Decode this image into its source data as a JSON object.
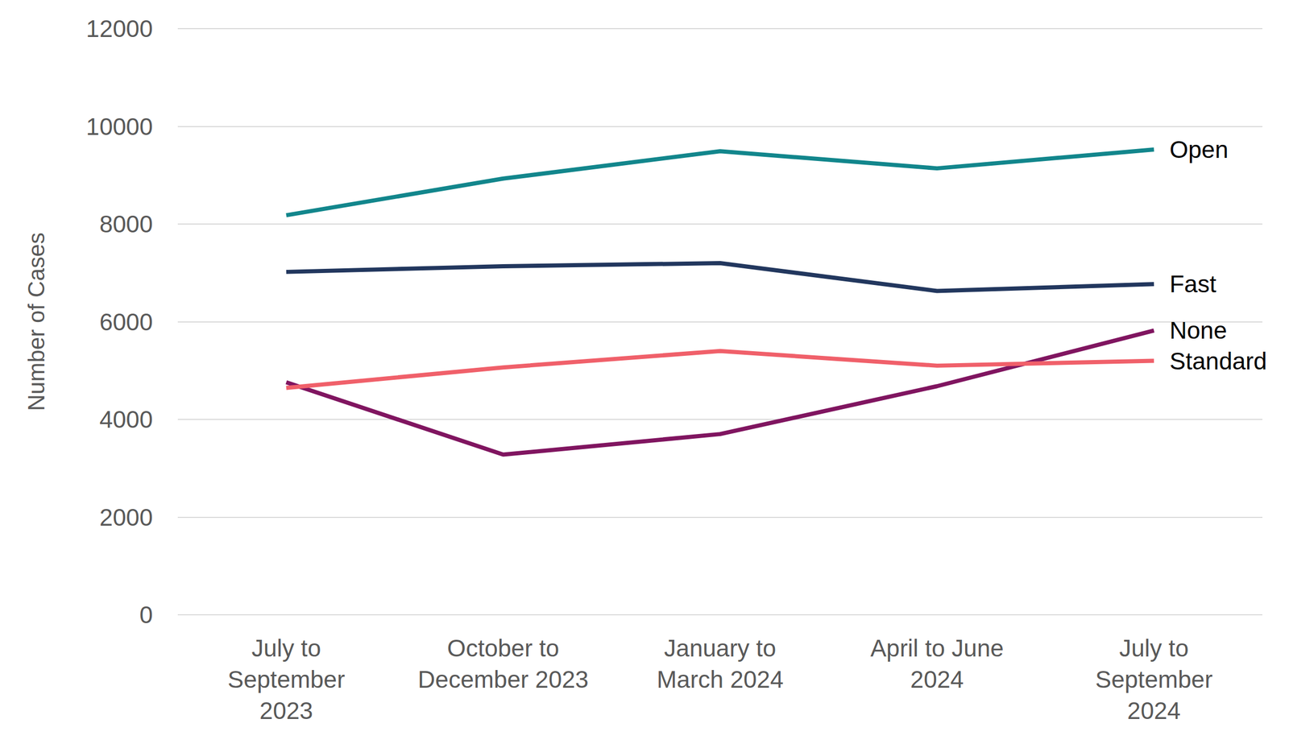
{
  "chart_data": {
    "type": "line",
    "y_label": "Number of Cases",
    "categories": [
      "July to\nSeptember\n2023",
      "October to\nDecember 2023",
      "January to\nMarch 2024",
      "April to June\n2024",
      "July to\nSeptember\n2024"
    ],
    "series": [
      {
        "name": "Open",
        "color": "#12868c",
        "values": [
          8180,
          8930,
          9490,
          9140,
          9525
        ]
      },
      {
        "name": "Fast",
        "color": "#22375e",
        "values": [
          7020,
          7135,
          7200,
          6630,
          6770
        ]
      },
      {
        "name": "None",
        "color": "#801560",
        "values": [
          4760,
          3280,
          3700,
          4680,
          5820
        ]
      },
      {
        "name": "Standard",
        "color": "#f0606a",
        "values": [
          4645,
          5065,
          5400,
          5100,
          5200
        ]
      }
    ],
    "ylim": [
      0,
      12000
    ],
    "yticks": [
      0,
      2000,
      4000,
      6000,
      8000,
      10000,
      12000
    ],
    "grid": true
  }
}
